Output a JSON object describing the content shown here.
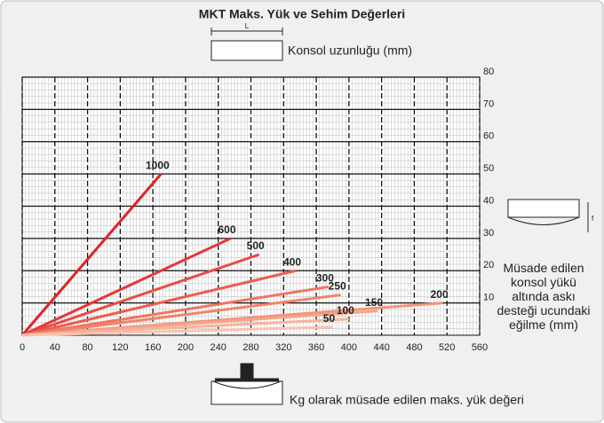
{
  "chart_data": {
    "type": "line",
    "title": "MKT Maks. Yük ve Sehim Değerleri",
    "x_label": "Kg olarak müsade edilen maks. yük değeri",
    "y_label": "Müsade edilen konsol yükü altında askı desteği ucundaki eğilme (mm)",
    "legend_title": "Konsol uzunluğu (mm)",
    "annotations": {
      "length": "L",
      "deflection": "f"
    },
    "xlim": [
      0,
      560
    ],
    "ylim": [
      0,
      80
    ],
    "xticks": [
      0,
      40,
      80,
      120,
      160,
      200,
      240,
      280,
      320,
      360,
      400,
      440,
      480,
      520,
      560
    ],
    "yticks": [
      10,
      20,
      30,
      40,
      50,
      60,
      70,
      80
    ],
    "grid": true,
    "series": [
      {
        "name": "1000",
        "color": "#e0232a",
        "x": [
          0,
          170
        ],
        "values": [
          0,
          50
        ]
      },
      {
        "name": "600",
        "color": "#e4383a",
        "x": [
          0,
          255
        ],
        "values": [
          0,
          30
        ]
      },
      {
        "name": "500",
        "color": "#e84c44",
        "x": [
          0,
          290
        ],
        "values": [
          0,
          25
        ]
      },
      {
        "name": "400",
        "color": "#ea5e50",
        "x": [
          0,
          335
        ],
        "values": [
          0,
          20
        ]
      },
      {
        "name": "300",
        "color": "#ee7560",
        "x": [
          0,
          375
        ],
        "values": [
          0,
          15
        ]
      },
      {
        "name": "250",
        "color": "#f08468",
        "x": [
          0,
          390
        ],
        "values": [
          0,
          12.5
        ]
      },
      {
        "name": "200",
        "color": "#f29478",
        "x": [
          0,
          515
        ],
        "values": [
          0,
          10
        ]
      },
      {
        "name": "150",
        "color": "#f4a68c",
        "x": [
          0,
          435
        ],
        "values": [
          0,
          7.5
        ]
      },
      {
        "name": "100",
        "color": "#f6b49c",
        "x": [
          0,
          400
        ],
        "values": [
          0,
          5
        ]
      },
      {
        "name": "50",
        "color": "#f8c4b0",
        "x": [
          0,
          380
        ],
        "values": [
          0,
          2.5
        ]
      }
    ]
  }
}
